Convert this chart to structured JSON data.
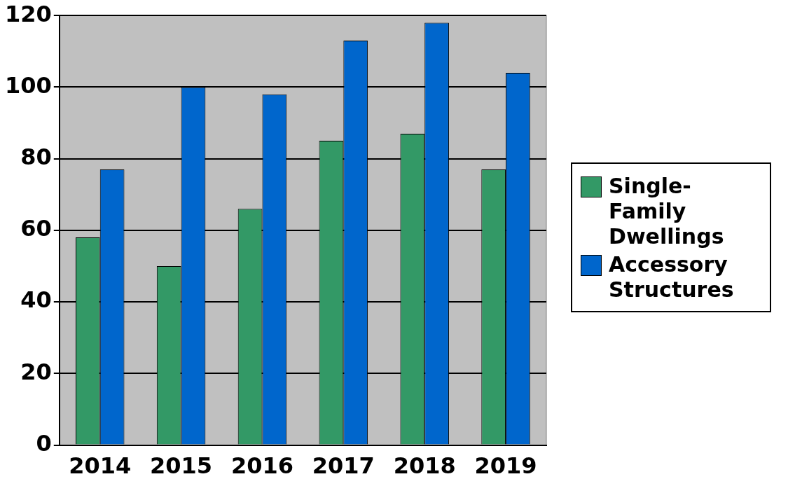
{
  "chart_data": {
    "type": "bar",
    "categories": [
      "2014",
      "2015",
      "2016",
      "2017",
      "2018",
      "2019"
    ],
    "series": [
      {
        "name": "Single-Family Dwellings",
        "color": "#339966",
        "values": [
          58,
          50,
          66,
          85,
          87,
          77
        ]
      },
      {
        "name": "Accessory Structures",
        "color": "#0066cc",
        "values": [
          77,
          100,
          98,
          113,
          118,
          104
        ]
      }
    ],
    "ylim": [
      0,
      120
    ],
    "yticks": [
      0,
      20,
      40,
      60,
      80,
      100,
      120
    ],
    "grid": "y",
    "legend": "right"
  }
}
